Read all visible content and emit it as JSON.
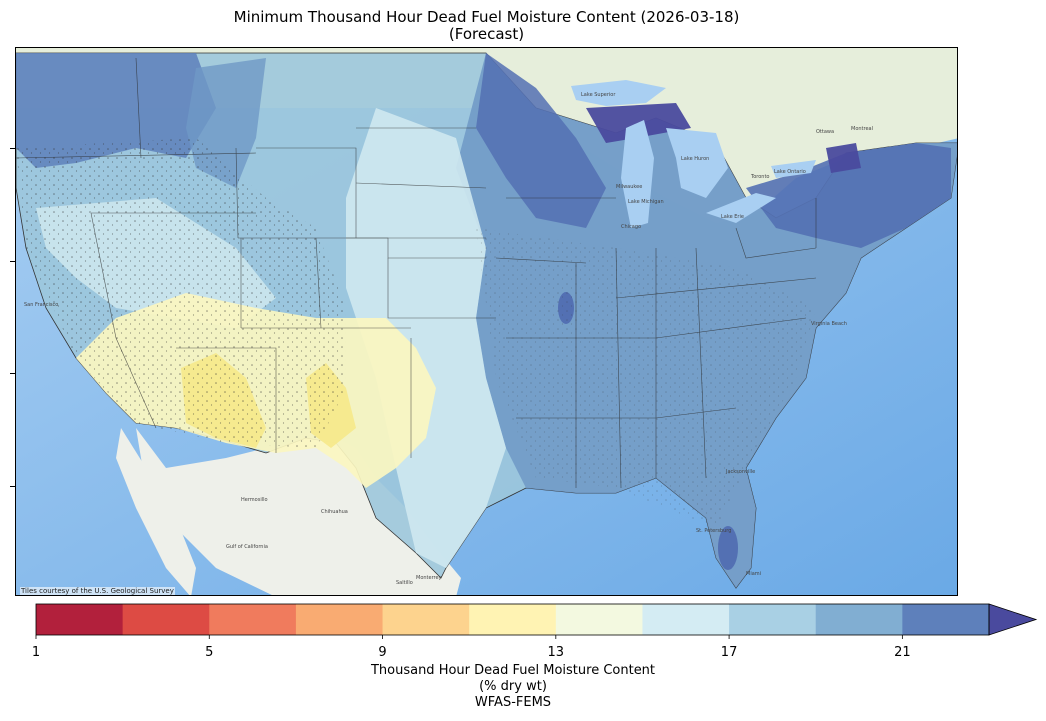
{
  "title": {
    "line1": "Minimum Thousand Hour Dead Fuel Moisture Content (2026-03-18)",
    "line2": "(Forecast)"
  },
  "map": {
    "attribution": "Tiles courtesy of the U.S. Geological Survey",
    "place_labels": [
      "Lake Superior",
      "Lake Michigan",
      "Lake Huron",
      "Lake Erie",
      "Lake Ontario",
      "Milwaukee",
      "Chicago",
      "Toronto",
      "Ottawa",
      "Montreal",
      "San Francisco",
      "Hermosillo",
      "Chihuahua",
      "Monterrey",
      "Gulf of California",
      "Saltillo",
      "Virginia Beach",
      "Jacksonville",
      "St. Petersburg",
      "Miami"
    ]
  },
  "colorbar": {
    "ticks": [
      "1",
      "5",
      "9",
      "13",
      "17",
      "21"
    ],
    "label_line1": "Thousand Hour Dead Fuel Moisture Content",
    "label_line2": "(% dry wt)",
    "label_line3": "WFAS-FEMS",
    "colors": [
      "#b2203c",
      "#dd4b44",
      "#f07b5d",
      "#f9ab72",
      "#fdd38e",
      "#fff3b3",
      "#f3f9e0",
      "#d4ecf3",
      "#a9d0e4",
      "#81aed2",
      "#5e80bb",
      "#4a4a9e"
    ],
    "min": 1,
    "max": 23,
    "extend": "max"
  },
  "legend_colors": {
    "very_dry": "#f6e98a",
    "dry": "#fbf6c0",
    "moderate": "#cfe8ef",
    "moist": "#9cc6dc",
    "wet": "#6f98c5",
    "very_wet": "#5370b3",
    "wettest": "#4a4a9e"
  }
}
